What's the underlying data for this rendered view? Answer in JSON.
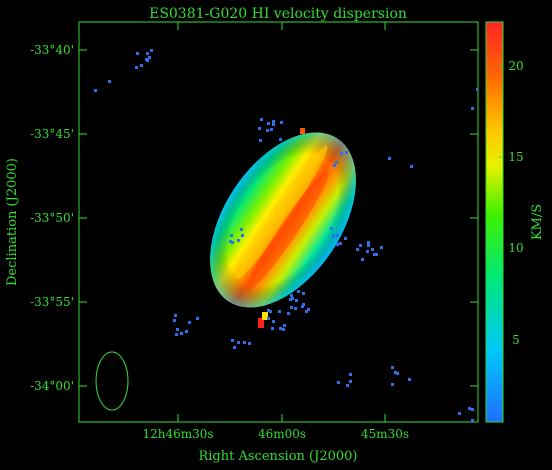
{
  "title": "ES0381-G020   HI velocity dispersion",
  "xlabel": "Right Ascension (J2000)",
  "ylabel": "Declination (J2000)",
  "colorbar_label": "KM/S",
  "dec_ticks": [
    "-33°40'",
    "-33°45'",
    "-33°50'",
    "-33°55'",
    "-34°00'"
  ],
  "ra_ticks": [
    "12h46m30s",
    "46m00s",
    "45m30s"
  ],
  "colorbar_ticks": [
    "20",
    "15",
    "10",
    "5"
  ],
  "colors": {
    "axes": "#33dd33",
    "background": "#000000",
    "noise": "#2f6fe8",
    "colormap": [
      "#1f6fff",
      "#00d0f0",
      "#00e86a",
      "#6cf200",
      "#fff000",
      "#ff9900",
      "#ff3a00",
      "#ff2020"
    ]
  }
}
